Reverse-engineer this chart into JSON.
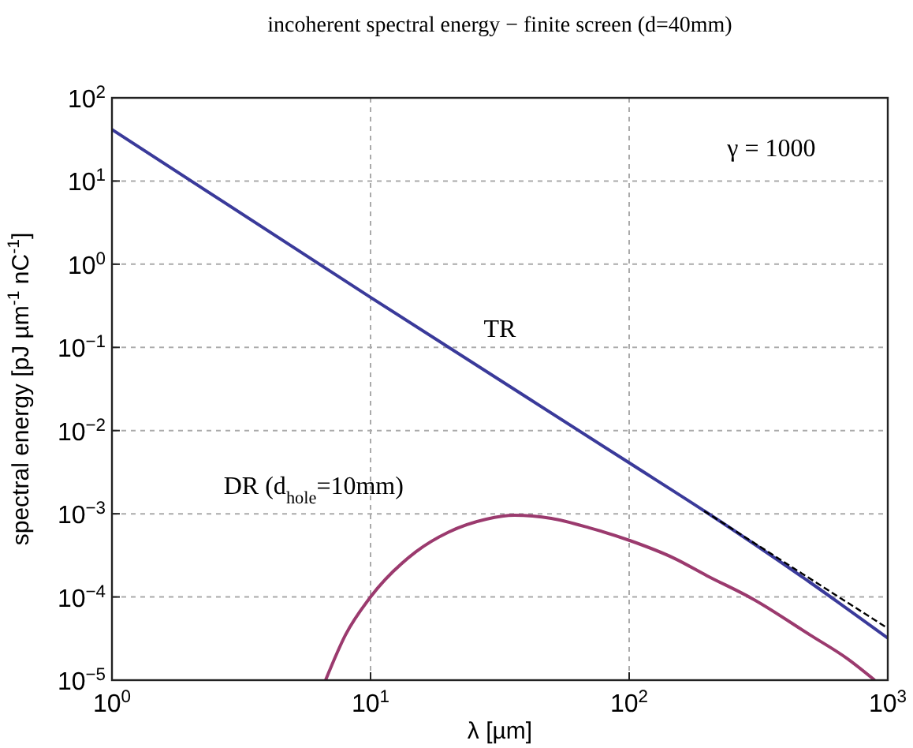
{
  "chart_data": {
    "type": "line",
    "title": "incoherent spectral energy − finite screen (d=40mm)",
    "xlabel": "λ [µm]",
    "ylabel": "spectral energy [pJ µm$^{-1}$ nC$^{-1}$]",
    "log": "xy",
    "grid": true,
    "xlim": [
      1,
      1000
    ],
    "ylim": [
      1e-05,
      100
    ],
    "xticks": [
      {
        "value": 1,
        "label": "10$^{0}$"
      },
      {
        "value": 10,
        "label": "10$^{1}$"
      },
      {
        "value": 100,
        "label": "10$^{2}$"
      },
      {
        "value": 1000,
        "label": "10$^{3}$"
      }
    ],
    "yticks": [
      {
        "value": 1e-05,
        "label": "10$^{−5}$"
      },
      {
        "value": 0.0001,
        "label": "10$^{−4}$"
      },
      {
        "value": 0.001,
        "label": "10$^{−3}$"
      },
      {
        "value": 0.01,
        "label": "10$^{−2}$"
      },
      {
        "value": 0.1,
        "label": "10$^{−1}$"
      },
      {
        "value": 1,
        "label": "10$^{0}$"
      },
      {
        "value": 10,
        "label": "10$^{1}$"
      },
      {
        "value": 100,
        "label": "10$^{2}$"
      }
    ],
    "series": [
      {
        "name": "TR",
        "color": "#3a3a9a",
        "x": [
          1,
          10,
          100,
          200,
          500,
          1000
        ],
        "values": [
          41.6,
          0.4,
          0.0041,
          0.00103,
          0.00015,
          3.2e-05
        ]
      },
      {
        "name": "DR (d$_{hole}$=10mm)",
        "color": "#9b3a6e",
        "x": [
          6.7,
          8,
          10,
          15,
          20,
          28,
          36,
          50,
          70,
          100,
          150,
          200,
          300,
          500,
          700,
          890
        ],
        "values": [
          1e-05,
          3.5e-05,
          0.0001,
          0.00035,
          0.0006,
          0.00086,
          0.00096,
          0.00088,
          0.00068,
          0.00048,
          0.00029,
          0.00018,
          9.5e-05,
          3.5e-05,
          1.8e-05,
          1e-05
        ]
      },
      {
        "color": "#000000",
        "line_style": "dashed",
        "x": [
          195,
          1000
        ],
        "values": [
          0.00108,
          4.2e-05
        ]
      }
    ],
    "annotations": [
      "γ = 1000"
    ]
  }
}
